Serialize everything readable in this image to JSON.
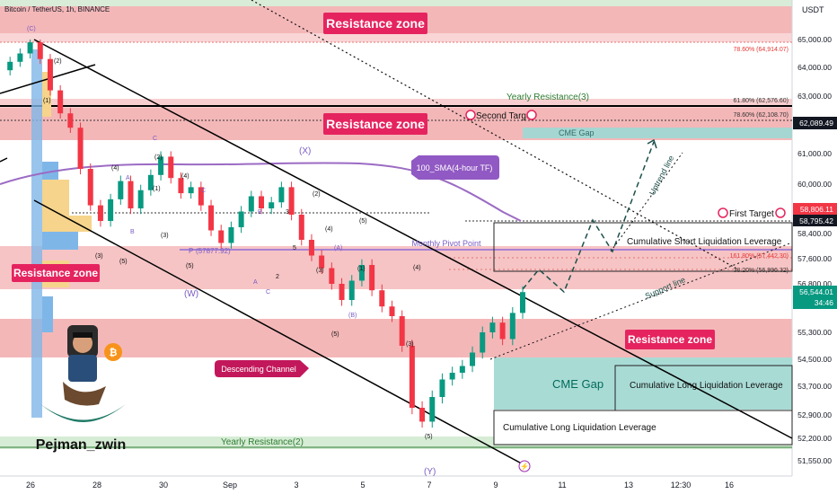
{
  "header": {
    "title": "Bitcoin / TetherUS, 1h, BINANCE"
  },
  "currency_label": "USDT",
  "chart_data": {
    "type": "candlestick",
    "title": "Bitcoin / TetherUS, 1h, BINANCE",
    "y_axis": {
      "ticks": [
        "65,000.00",
        "64,000.00",
        "63,000.00",
        "62,000.00",
        "61,000.00",
        "60,000.00",
        "59,200.00",
        "58,400.00",
        "57,600.00",
        "56,800.00",
        "55,300.00",
        "54,500.00",
        "53,700.00",
        "52,900.00",
        "52,200.00",
        "51,550.00"
      ],
      "tick_values": [
        65000,
        64000,
        63000,
        62000,
        61000,
        60000,
        59200,
        58400,
        57600,
        56800,
        55300,
        54500,
        53700,
        52900,
        52200,
        51550
      ]
    },
    "x_axis": {
      "ticks": [
        "26",
        "28",
        "30",
        "Sep",
        "3",
        "5",
        "7",
        "9",
        "11",
        "13",
        "12:30",
        "16"
      ]
    },
    "price_badges": [
      {
        "label": "62,089.49",
        "value": 62089.49,
        "color": "#131722"
      },
      {
        "label": "58,806.11",
        "value": 58806.11,
        "color": "#f23645"
      },
      {
        "label": "58,795.42",
        "value": 58795.42,
        "color": "#131722"
      },
      {
        "label": "56,544.01",
        "value": 56544.01,
        "color": "#089981",
        "sub": "34:46"
      }
    ],
    "fib_levels": [
      {
        "label": "78.60% (64,914.07)",
        "value": 64914.07
      },
      {
        "label": "61.80% (62,576.60)",
        "value": 62576.6
      },
      {
        "label": "78.60% (62,108.70)",
        "value": 62108.7
      },
      {
        "label": "161.80% (57,442.30)",
        "value": 57442.3
      },
      {
        "label": "38.20% (56,996.32)",
        "value": 56996.32
      }
    ],
    "zones": [
      {
        "label": "Resistance zone",
        "from": 64900,
        "to": 65500
      },
      {
        "label": "Resistance zone",
        "from": 61700,
        "to": 62500
      },
      {
        "label": "Resistance zone",
        "from": 56600,
        "to": 57900
      },
      {
        "label": "Resistance zone",
        "from": 54500,
        "to": 55600
      }
    ],
    "annotations": {
      "yearly_resistance_3": "Yearly Resistance(3)",
      "yearly_resistance_2": "Yearly Resistance(2)",
      "second_target": "Second Target",
      "first_target": "First Target",
      "cme_gap": "CME Gap",
      "monthly_pivot": "Monthly Pivot Point",
      "sma_label": "100_SMA(4-hour TF)",
      "descending_channel": "Descending Channel",
      "uptrend_line": "Uptrend line",
      "support_line": "Support line",
      "short_liq": "Cumulative Short Liquidation Leverage",
      "long_liq": "Cumulative Long Liquidation Leverage",
      "author": "Pejman_zwin",
      "pivot_value": "(57877.92)"
    },
    "wave_labels": [
      "(C)",
      "(2)",
      "(1)",
      "(4)",
      "(3)",
      "(5)",
      "(1)",
      "(2)",
      "(3)",
      "(4)",
      "(5)",
      "(W)",
      "(X)",
      "(Y)",
      "(A)",
      "(B)",
      "(C)",
      "A",
      "B",
      "C",
      "P",
      "1",
      "2",
      "3",
      "4",
      "5"
    ],
    "series": [
      {
        "values": [
          63900,
          64200,
          64500,
          64900,
          64300,
          63200,
          62400,
          61900,
          60500,
          59300,
          58800,
          59500,
          60100,
          59200,
          59800,
          60300,
          60900,
          60200,
          59700,
          59900,
          59300,
          58500,
          58100,
          58600,
          59100,
          59600,
          59200,
          59400,
          59900,
          59000,
          58200,
          57700,
          57300,
          56800,
          56300,
          56900,
          57400,
          56600,
          56100,
          55800,
          54900,
          53100,
          52700,
          53400,
          53900,
          54100,
          54300,
          54700,
          55300,
          55600,
          55100,
          55900,
          56544
        ]
      }
    ]
  }
}
